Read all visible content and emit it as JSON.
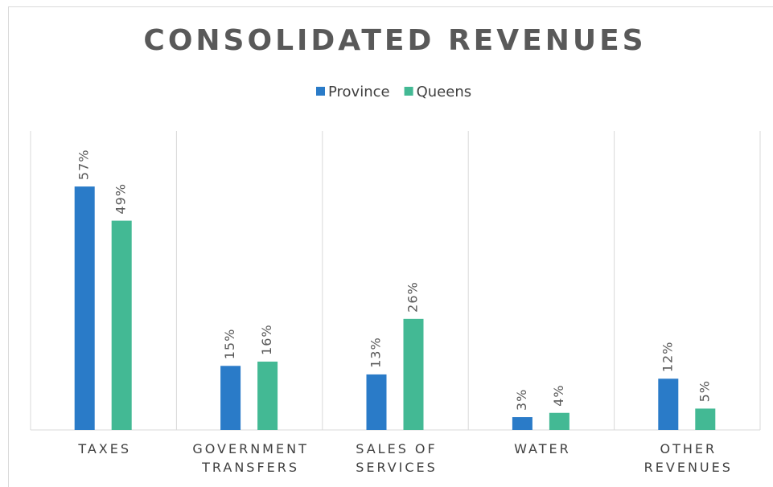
{
  "chart_data": {
    "type": "bar",
    "title": "CONSOLIDATED REVENUES",
    "categories": [
      "TAXES",
      "GOVERNMENT TRANSFERS",
      "SALES OF SERVICES",
      "WATER",
      "OTHER REVENUES"
    ],
    "series": [
      {
        "name": "Province",
        "color": "#2a7bc8",
        "values": [
          57,
          15,
          13,
          3,
          12
        ],
        "value_labels": [
          "57%",
          "15%",
          "13%",
          "3%",
          "12%"
        ]
      },
      {
        "name": "Queens",
        "color": "#43b994",
        "values": [
          49,
          16,
          26,
          4,
          5
        ],
        "value_labels": [
          "49%",
          "16%",
          "26%",
          "4%",
          "5%"
        ]
      }
    ],
    "ylim": [
      0,
      70
    ],
    "legend": "top"
  }
}
